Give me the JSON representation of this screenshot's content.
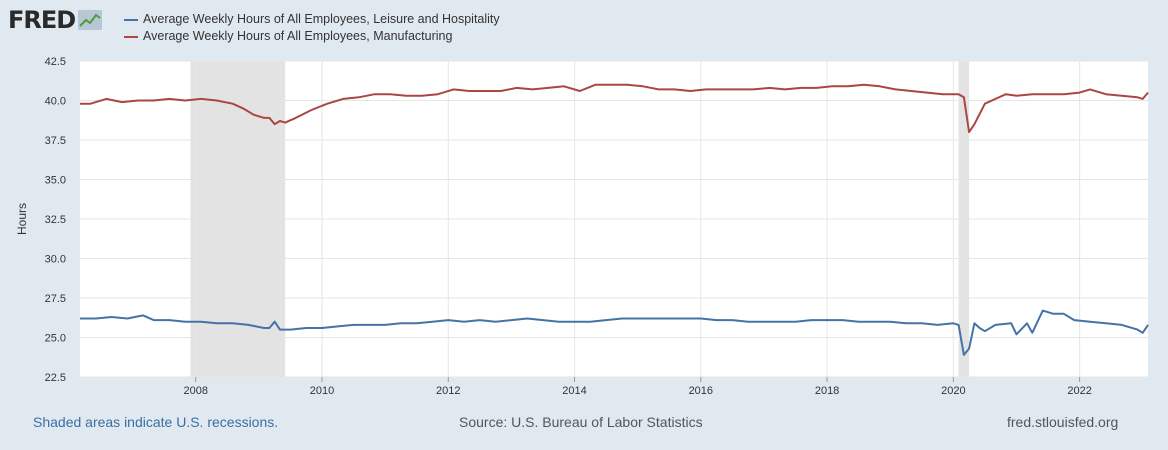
{
  "brand": {
    "logo_text": "FRED",
    "logo_icon": "line-chart-icon"
  },
  "footer": {
    "recession_note": "Shaded areas indicate U.S. recessions.",
    "source": "Source: U.S. Bureau of Labor Statistics",
    "site": "fred.stlouisfed.org"
  },
  "colors": {
    "background": "#e1e9f0",
    "plot_background": "#ffffff",
    "recession": "#e3e3e3"
  },
  "chart_data": {
    "type": "line",
    "title": "",
    "xlabel": "",
    "ylabel": "Hours",
    "xlim": [
      "2006-03",
      "2023-02"
    ],
    "ylim": [
      22.5,
      42.5
    ],
    "yticks": [
      22.5,
      25.0,
      27.5,
      30.0,
      32.5,
      35.0,
      37.5,
      40.0,
      42.5
    ],
    "ytick_labels": [
      "22.5",
      "25.0",
      "27.5",
      "30.0",
      "32.5",
      "35.0",
      "37.5",
      "40.0",
      "42.5"
    ],
    "xticks": [
      "2008",
      "2010",
      "2012",
      "2014",
      "2016",
      "2018",
      "2020",
      "2022"
    ],
    "grid": true,
    "legend_position": "top-left",
    "recessions": [
      {
        "start": "2007-12",
        "end": "2009-06"
      },
      {
        "start": "2020-02",
        "end": "2020-04"
      }
    ],
    "series": [
      {
        "name": "Average Weekly Hours of All Employees, Leisure and Hospitality",
        "color": "#4572a7",
        "points": [
          [
            "2006-03",
            26.2
          ],
          [
            "2006-06",
            26.2
          ],
          [
            "2006-09",
            26.3
          ],
          [
            "2006-12",
            26.2
          ],
          [
            "2007-03",
            26.4
          ],
          [
            "2007-05",
            26.1
          ],
          [
            "2007-08",
            26.1
          ],
          [
            "2007-11",
            26.0
          ],
          [
            "2008-02",
            26.0
          ],
          [
            "2008-05",
            25.9
          ],
          [
            "2008-08",
            25.9
          ],
          [
            "2008-11",
            25.8
          ],
          [
            "2009-02",
            25.6
          ],
          [
            "2009-03",
            25.6
          ],
          [
            "2009-04",
            26.0
          ],
          [
            "2009-05",
            25.5
          ],
          [
            "2009-07",
            25.5
          ],
          [
            "2009-10",
            25.6
          ],
          [
            "2010-01",
            25.6
          ],
          [
            "2010-04",
            25.7
          ],
          [
            "2010-07",
            25.8
          ],
          [
            "2010-10",
            25.8
          ],
          [
            "2011-01",
            25.8
          ],
          [
            "2011-04",
            25.9
          ],
          [
            "2011-07",
            25.9
          ],
          [
            "2011-10",
            26.0
          ],
          [
            "2012-01",
            26.1
          ],
          [
            "2012-04",
            26.0
          ],
          [
            "2012-07",
            26.1
          ],
          [
            "2012-10",
            26.0
          ],
          [
            "2013-01",
            26.1
          ],
          [
            "2013-04",
            26.2
          ],
          [
            "2013-07",
            26.1
          ],
          [
            "2013-10",
            26.0
          ],
          [
            "2014-01",
            26.0
          ],
          [
            "2014-04",
            26.0
          ],
          [
            "2014-07",
            26.1
          ],
          [
            "2014-10",
            26.2
          ],
          [
            "2015-01",
            26.2
          ],
          [
            "2015-04",
            26.2
          ],
          [
            "2015-07",
            26.2
          ],
          [
            "2015-10",
            26.2
          ],
          [
            "2016-01",
            26.2
          ],
          [
            "2016-04",
            26.1
          ],
          [
            "2016-07",
            26.1
          ],
          [
            "2016-10",
            26.0
          ],
          [
            "2017-01",
            26.0
          ],
          [
            "2017-04",
            26.0
          ],
          [
            "2017-07",
            26.0
          ],
          [
            "2017-10",
            26.1
          ],
          [
            "2018-01",
            26.1
          ],
          [
            "2018-04",
            26.1
          ],
          [
            "2018-07",
            26.0
          ],
          [
            "2018-10",
            26.0
          ],
          [
            "2019-01",
            26.0
          ],
          [
            "2019-04",
            25.9
          ],
          [
            "2019-07",
            25.9
          ],
          [
            "2019-10",
            25.8
          ],
          [
            "2020-01",
            25.9
          ],
          [
            "2020-02",
            25.8
          ],
          [
            "2020-03",
            23.9
          ],
          [
            "2020-04",
            24.3
          ],
          [
            "2020-05",
            25.9
          ],
          [
            "2020-06",
            25.6
          ],
          [
            "2020-07",
            25.4
          ],
          [
            "2020-09",
            25.8
          ],
          [
            "2020-12",
            25.9
          ],
          [
            "2021-01",
            25.2
          ],
          [
            "2021-03",
            25.9
          ],
          [
            "2021-04",
            25.3
          ],
          [
            "2021-05",
            26.0
          ],
          [
            "2021-06",
            26.7
          ],
          [
            "2021-08",
            26.5
          ],
          [
            "2021-10",
            26.5
          ],
          [
            "2021-12",
            26.1
          ],
          [
            "2022-03",
            26.0
          ],
          [
            "2022-06",
            25.9
          ],
          [
            "2022-09",
            25.8
          ],
          [
            "2022-12",
            25.5
          ],
          [
            "2023-01",
            25.3
          ],
          [
            "2023-02",
            25.8
          ]
        ]
      },
      {
        "name": "Average Weekly Hours of All Employees, Manufacturing",
        "color": "#aa4643",
        "points": [
          [
            "2006-03",
            39.8
          ],
          [
            "2006-05",
            39.8
          ],
          [
            "2006-08",
            40.1
          ],
          [
            "2006-11",
            39.9
          ],
          [
            "2007-02",
            40.0
          ],
          [
            "2007-05",
            40.0
          ],
          [
            "2007-08",
            40.1
          ],
          [
            "2007-11",
            40.0
          ],
          [
            "2008-02",
            40.1
          ],
          [
            "2008-05",
            40.0
          ],
          [
            "2008-08",
            39.8
          ],
          [
            "2008-10",
            39.5
          ],
          [
            "2008-12",
            39.1
          ],
          [
            "2009-02",
            38.9
          ],
          [
            "2009-03",
            38.9
          ],
          [
            "2009-04",
            38.5
          ],
          [
            "2009-05",
            38.7
          ],
          [
            "2009-06",
            38.6
          ],
          [
            "2009-08",
            38.9
          ],
          [
            "2009-11",
            39.4
          ],
          [
            "2010-02",
            39.8
          ],
          [
            "2010-05",
            40.1
          ],
          [
            "2010-08",
            40.2
          ],
          [
            "2010-11",
            40.4
          ],
          [
            "2011-02",
            40.4
          ],
          [
            "2011-05",
            40.3
          ],
          [
            "2011-08",
            40.3
          ],
          [
            "2011-11",
            40.4
          ],
          [
            "2012-02",
            40.7
          ],
          [
            "2012-05",
            40.6
          ],
          [
            "2012-08",
            40.6
          ],
          [
            "2012-11",
            40.6
          ],
          [
            "2013-02",
            40.8
          ],
          [
            "2013-05",
            40.7
          ],
          [
            "2013-08",
            40.8
          ],
          [
            "2013-11",
            40.9
          ],
          [
            "2014-02",
            40.6
          ],
          [
            "2014-05",
            41.0
          ],
          [
            "2014-08",
            41.0
          ],
          [
            "2014-11",
            41.0
          ],
          [
            "2015-02",
            40.9
          ],
          [
            "2015-05",
            40.7
          ],
          [
            "2015-08",
            40.7
          ],
          [
            "2015-11",
            40.6
          ],
          [
            "2016-02",
            40.7
          ],
          [
            "2016-05",
            40.7
          ],
          [
            "2016-08",
            40.7
          ],
          [
            "2016-11",
            40.7
          ],
          [
            "2017-02",
            40.8
          ],
          [
            "2017-05",
            40.7
          ],
          [
            "2017-08",
            40.8
          ],
          [
            "2017-11",
            40.8
          ],
          [
            "2018-02",
            40.9
          ],
          [
            "2018-05",
            40.9
          ],
          [
            "2018-08",
            41.0
          ],
          [
            "2018-11",
            40.9
          ],
          [
            "2019-02",
            40.7
          ],
          [
            "2019-05",
            40.6
          ],
          [
            "2019-08",
            40.5
          ],
          [
            "2019-11",
            40.4
          ],
          [
            "2020-01",
            40.4
          ],
          [
            "2020-02",
            40.4
          ],
          [
            "2020-03",
            40.2
          ],
          [
            "2020-04",
            38.0
          ],
          [
            "2020-05",
            38.5
          ],
          [
            "2020-07",
            39.8
          ],
          [
            "2020-09",
            40.1
          ],
          [
            "2020-11",
            40.4
          ],
          [
            "2021-01",
            40.3
          ],
          [
            "2021-04",
            40.4
          ],
          [
            "2021-07",
            40.4
          ],
          [
            "2021-10",
            40.4
          ],
          [
            "2022-01",
            40.5
          ],
          [
            "2022-03",
            40.7
          ],
          [
            "2022-06",
            40.4
          ],
          [
            "2022-09",
            40.3
          ],
          [
            "2022-12",
            40.2
          ],
          [
            "2023-01",
            40.1
          ],
          [
            "2023-02",
            40.5
          ]
        ]
      }
    ]
  }
}
